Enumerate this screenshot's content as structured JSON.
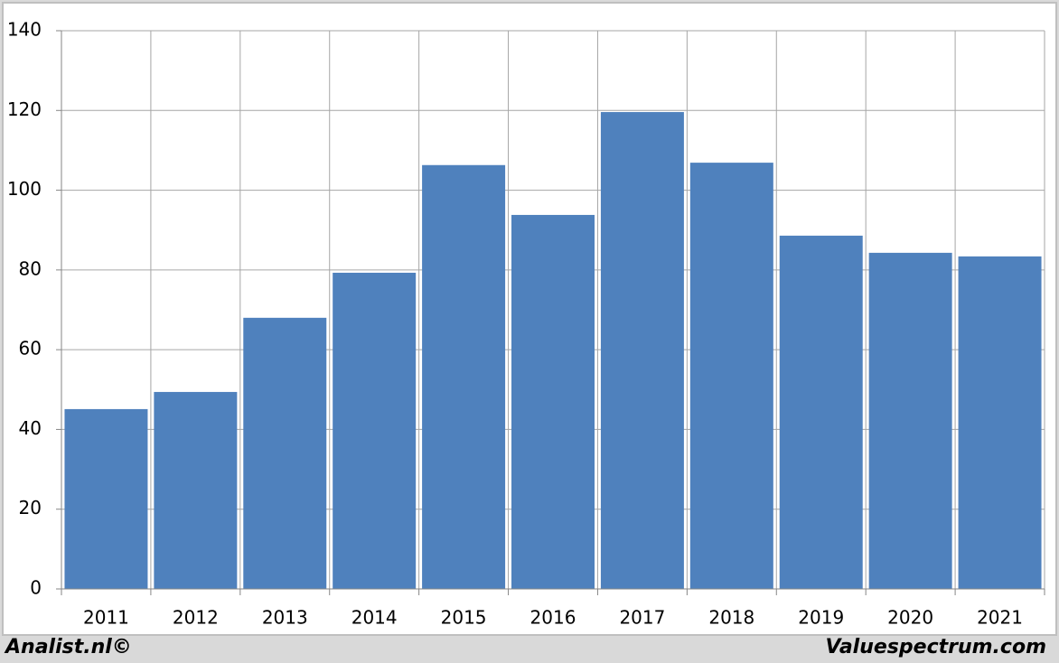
{
  "chart_data": {
    "type": "bar",
    "categories": [
      "2011",
      "2012",
      "2013",
      "2014",
      "2015",
      "2016",
      "2017",
      "2018",
      "2019",
      "2020",
      "2021"
    ],
    "values": [
      45.1,
      49.4,
      68,
      79.3,
      106.3,
      93.8,
      119.6,
      106.9,
      88.6,
      84.3,
      83.4
    ],
    "color": "#4f81bd",
    "ylim": [
      0,
      140
    ],
    "yticks": [
      0,
      20,
      40,
      60,
      80,
      100,
      120,
      140
    ],
    "grid": true
  },
  "footer": {
    "left": "Analist.nl©",
    "right": "Valuespectrum.com"
  }
}
